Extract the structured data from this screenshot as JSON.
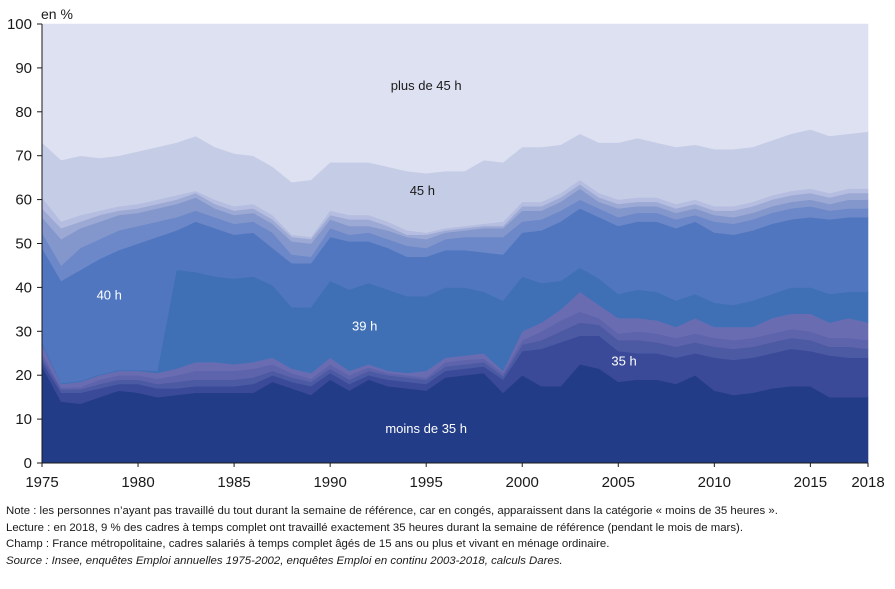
{
  "chart_data": {
    "type": "area",
    "stacked": true,
    "title": "",
    "xlabel": "",
    "ylabel": "en %",
    "ylim": [
      0,
      100
    ],
    "xlim": [
      1975,
      2018
    ],
    "yticks": [
      0,
      10,
      20,
      30,
      40,
      50,
      60,
      70,
      80,
      90,
      100
    ],
    "xticks": [
      1975,
      1980,
      1985,
      1990,
      1995,
      2000,
      2005,
      2010,
      2015,
      2018
    ],
    "grid": false,
    "legend": "none",
    "x": [
      1975,
      1976,
      1977,
      1978,
      1979,
      1980,
      1981,
      1982,
      1983,
      1984,
      1985,
      1986,
      1987,
      1988,
      1989,
      1990,
      1991,
      1992,
      1993,
      1994,
      1995,
      1996,
      1997,
      1998,
      1999,
      2000,
      2001,
      2002,
      2003,
      2004,
      2005,
      2006,
      2007,
      2008,
      2009,
      2010,
      2011,
      2012,
      2013,
      2014,
      2015,
      2016,
      2017,
      2018
    ],
    "boundaries": [
      {
        "name": "moins de 35 h",
        "color": "#223c88",
        "upper": [
          22,
          14,
          13.5,
          15,
          16.5,
          16,
          15,
          15.5,
          16,
          16,
          16,
          16,
          18.5,
          17,
          15.5,
          19,
          16.5,
          19,
          17.5,
          17,
          16.5,
          19.5,
          20,
          20.5,
          16,
          20,
          17.5,
          17.5,
          22.5,
          21.5,
          18.5,
          19,
          19,
          18,
          20,
          16.5,
          15.5,
          16,
          17,
          17.5,
          17.5,
          15,
          15,
          15
        ]
      },
      {
        "name": "",
        "color": "#3a4a98",
        "upper": [
          23,
          16,
          16,
          17,
          18,
          18,
          17,
          17,
          17.5,
          17.5,
          17.5,
          18,
          20,
          18.5,
          17.5,
          20.5,
          18,
          20,
          19,
          18.5,
          18,
          21,
          21.5,
          22,
          19,
          25.5,
          26,
          27.5,
          29,
          29,
          25.5,
          25,
          25,
          24,
          25,
          24,
          23.5,
          24,
          25,
          26,
          25.5,
          24.5,
          24,
          24
        ]
      },
      {
        "name": "",
        "color": "#4c5aa4",
        "upper": [
          24,
          16.8,
          16.8,
          18,
          19,
          19,
          18,
          18.5,
          19,
          19,
          19,
          19.5,
          21,
          19.5,
          18.5,
          21.5,
          19,
          21,
          20,
          19.5,
          19,
          22,
          22.5,
          23,
          19.8,
          27,
          28,
          30,
          32,
          31.5,
          28,
          28,
          27.5,
          26.5,
          27.5,
          26.5,
          26,
          26.5,
          27.5,
          28.5,
          28,
          26.5,
          26.5,
          26
        ]
      },
      {
        "name": "",
        "color": "#5e64ac",
        "upper": [
          25,
          17.2,
          17.3,
          19,
          20,
          20,
          19.2,
          20,
          21,
          21,
          21,
          21.5,
          22.5,
          20.5,
          19.2,
          22.5,
          20,
          21.8,
          20.5,
          20,
          19.5,
          23,
          23.5,
          23.8,
          20.5,
          28,
          30,
          32.5,
          34.5,
          33,
          29.5,
          30,
          29.5,
          28.5,
          29.5,
          28.5,
          28,
          28.5,
          29.5,
          30.5,
          30,
          28.5,
          28.5,
          28
        ]
      },
      {
        "name": "35 h",
        "color": "#6a6cb2",
        "upper": [
          27,
          18,
          18.5,
          20,
          21,
          21,
          20.5,
          21.5,
          23,
          23,
          22.5,
          23,
          24,
          21.5,
          20.5,
          24,
          21,
          22.5,
          21,
          20.5,
          21,
          24,
          24.5,
          25,
          21,
          30,
          32,
          35,
          39,
          36,
          33,
          33,
          32.5,
          31,
          33,
          31,
          31,
          31,
          33,
          34,
          34,
          32,
          33,
          32
        ]
      },
      {
        "name": "39 h",
        "color": "#3f70b6",
        "upper": [
          27.5,
          18.2,
          18.7,
          20.2,
          21.2,
          21.2,
          21,
          44,
          43.5,
          42.5,
          42,
          42.5,
          40.5,
          35.5,
          35.5,
          41.5,
          39.5,
          41,
          39.5,
          38,
          38,
          40,
          40,
          39,
          37,
          42.5,
          41,
          41.5,
          44.5,
          42,
          38.5,
          39.5,
          39,
          37,
          38.5,
          36.5,
          36,
          37,
          38.5,
          40,
          40,
          38.5,
          39,
          39
        ]
      },
      {
        "name": "40 h",
        "color": "#5076c0",
        "upper": [
          49,
          41.5,
          44,
          46.5,
          48.5,
          50,
          51.5,
          53,
          55,
          53.5,
          52,
          52.5,
          49,
          45.5,
          45.5,
          51.5,
          50.5,
          50.5,
          49,
          47,
          47,
          48.5,
          48.5,
          48,
          47.5,
          52.5,
          53,
          55,
          58,
          56,
          54,
          55,
          55,
          53.5,
          55,
          52.5,
          52,
          53,
          54.5,
          55.5,
          56,
          55.5,
          56,
          56
        ]
      },
      {
        "name": "",
        "color": "#6c88c8",
        "upper": [
          52.5,
          45,
          49,
          51,
          53,
          54,
          55,
          56,
          57.5,
          56,
          54.5,
          55,
          52.5,
          47.5,
          47,
          53.5,
          52,
          52.5,
          51,
          49.5,
          49,
          51,
          51.5,
          51.5,
          51.5,
          55,
          55.5,
          57.5,
          60,
          58,
          56,
          57,
          57,
          55.5,
          56.5,
          55,
          54.5,
          55.5,
          57,
          58,
          58.5,
          57.5,
          58,
          58
        ]
      },
      {
        "name": "",
        "color": "#8497cc",
        "upper": [
          56,
          51,
          53.5,
          55,
          56.5,
          57,
          58,
          59,
          60.5,
          58,
          56.5,
          57,
          54.5,
          50.5,
          50,
          55.5,
          54,
          54,
          53,
          51.5,
          51,
          52.5,
          53,
          53.5,
          53.5,
          57.5,
          57.5,
          59.5,
          62.5,
          59.5,
          58,
          58.5,
          58.5,
          57,
          58,
          56.5,
          56,
          57,
          58.5,
          59.5,
          60,
          59,
          60,
          60
        ]
      },
      {
        "name": "",
        "color": "#9ca9d4",
        "upper": [
          58,
          53.5,
          55,
          56.5,
          57.5,
          58,
          59,
          60,
          61.5,
          59,
          57.5,
          58,
          55.5,
          51.5,
          51,
          56.5,
          55.5,
          55.5,
          54,
          52,
          52,
          53,
          53.5,
          54,
          54,
          58.5,
          58.5,
          60.5,
          63.5,
          60.5,
          59,
          59.5,
          59.5,
          58,
          59,
          57.5,
          57.5,
          58.5,
          60,
          61,
          61.5,
          60.5,
          61.5,
          61.5
        ]
      },
      {
        "name": "45 h",
        "color": "#b5bde0",
        "upper": [
          60.5,
          55,
          56.5,
          57.5,
          58.5,
          59,
          60,
          61,
          62,
          60,
          58.5,
          59,
          56.5,
          52,
          51.5,
          57.5,
          56.5,
          56.5,
          55,
          53,
          52.5,
          53.5,
          54,
          54.5,
          55,
          59.5,
          59.5,
          61.5,
          64.5,
          61.5,
          60,
          60.5,
          60.5,
          59,
          60,
          58.5,
          58.5,
          59.5,
          61,
          62,
          62.5,
          61.5,
          62.5,
          62.5
        ]
      },
      {
        "name": "",
        "color": "#c5cce6",
        "upper": [
          73,
          69,
          70,
          69.5,
          70,
          71,
          72,
          73,
          74.5,
          72,
          70.5,
          70,
          67.5,
          64,
          64.5,
          68.5,
          68.5,
          68.5,
          67.5,
          66.5,
          66,
          66.5,
          66.5,
          69,
          68.5,
          72,
          72,
          72.5,
          75,
          73,
          73,
          74,
          73,
          72,
          72.5,
          71.5,
          71.5,
          72,
          73.5,
          75,
          76,
          74.5,
          75,
          75.5
        ]
      },
      {
        "name": "plus de 45 h",
        "color": "#dde1f1",
        "upper": [
          100,
          100,
          100,
          100,
          100,
          100,
          100,
          100,
          100,
          100,
          100,
          100,
          100,
          100,
          100,
          100,
          100,
          100,
          100,
          100,
          100,
          100,
          100,
          100,
          100,
          100,
          100,
          100,
          100,
          100,
          100,
          100,
          100,
          100,
          100,
          100,
          100,
          100,
          100,
          100,
          100,
          100,
          100,
          100
        ]
      }
    ],
    "annotations": [
      {
        "text": "plus de 45 h",
        "x": 1995,
        "y": 85,
        "style": "dark"
      },
      {
        "text": "45 h",
        "x": 1994.8,
        "y": 61,
        "style": "dark"
      },
      {
        "text": "40 h",
        "x": 1978.5,
        "y": 37.3,
        "style": "light"
      },
      {
        "text": "39 h",
        "x": 1991.8,
        "y": 30.2,
        "style": "light"
      },
      {
        "text": "35 h",
        "x": 2005.3,
        "y": 22.2,
        "style": "light"
      },
      {
        "text": "moins de 35 h",
        "x": 1995,
        "y": 6.8,
        "style": "light"
      }
    ]
  },
  "notes": {
    "note": "Note : les personnes n’ayant pas travaillé du tout durant la semaine de référence, car en congés, apparaissent dans la catégorie « moins de 35 heures ».",
    "lecture": "Lecture : en 2018, 9 % des cadres à temps complet ont travaillé exactement 35 heures durant la semaine de référence (pendant le mois de mars).",
    "champ": "Champ : France métropolitaine, cadres salariés à temps complet âgés de 15 ans ou plus et vivant en ménage ordinaire.",
    "source": "Source : Insee, enquêtes Emploi annuelles 1975-2002, enquêtes Emploi en continu 2003-2018, calculs Dares."
  }
}
